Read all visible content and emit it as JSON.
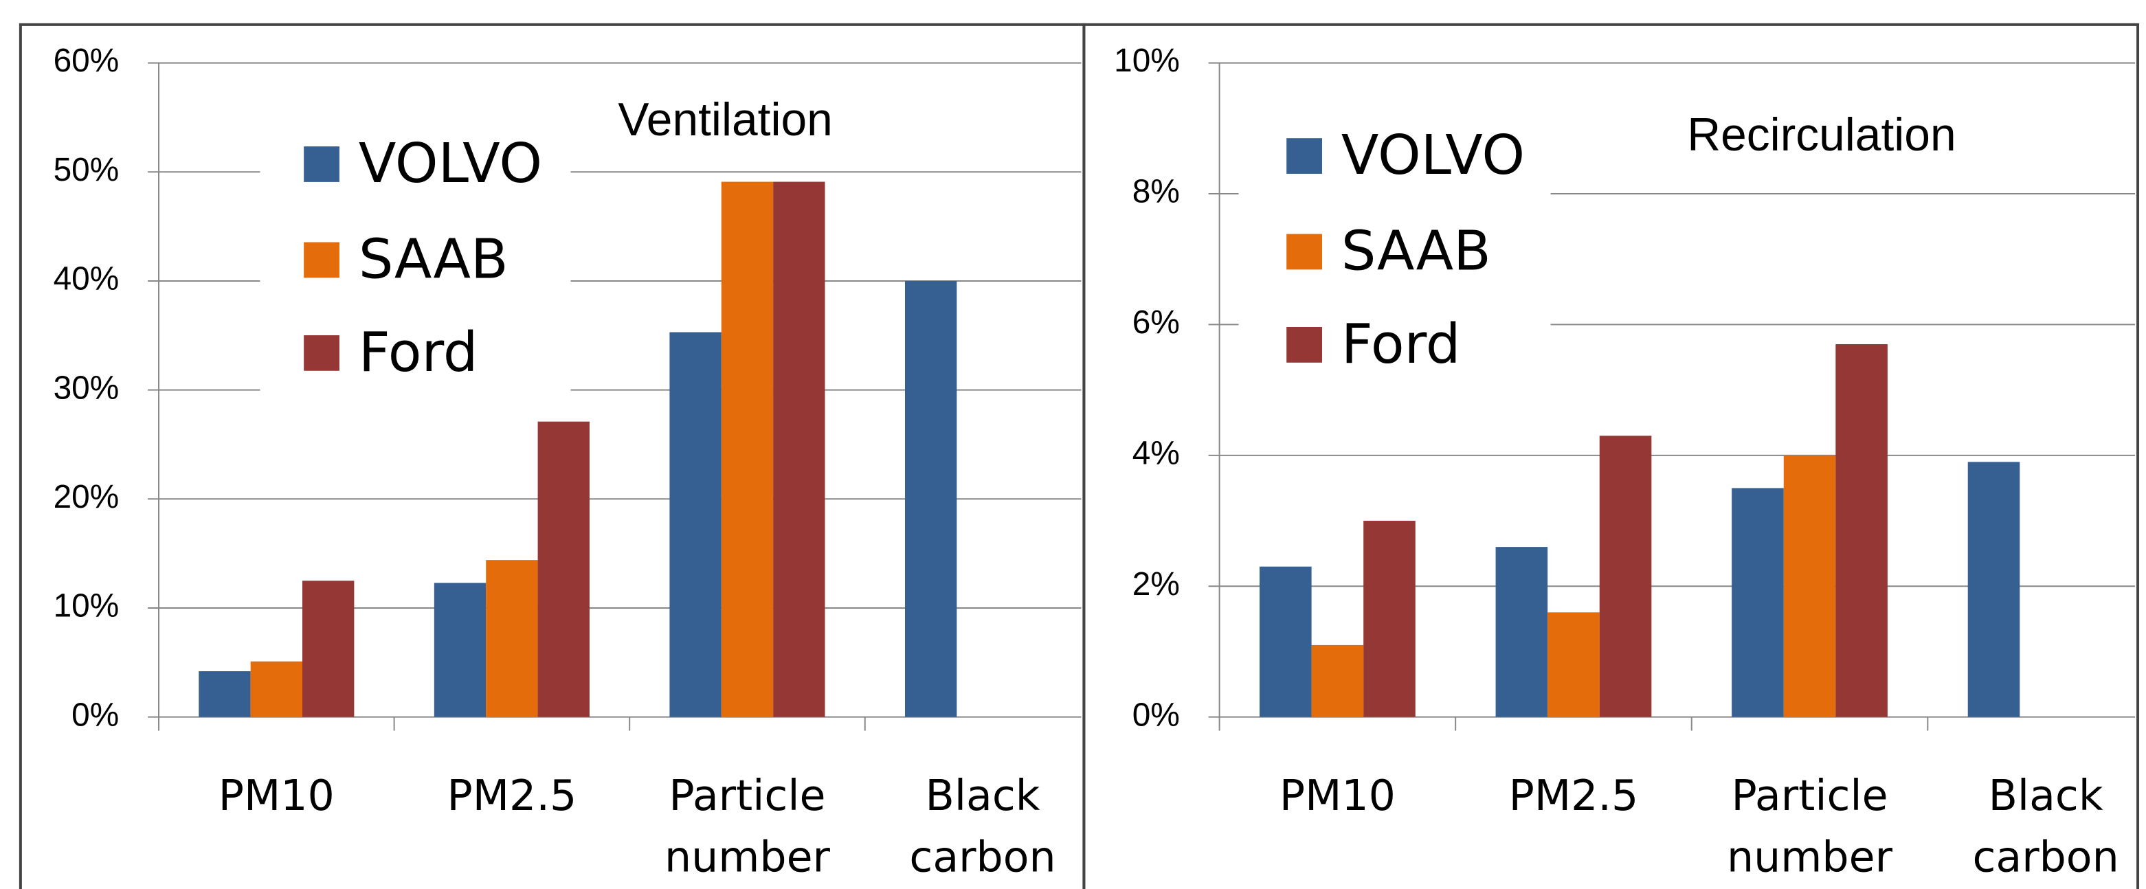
{
  "chart_data": [
    {
      "type": "bar",
      "title": "Ventilation",
      "categories": [
        "PM10",
        "PM2.5",
        "Particle number",
        "Black carbon"
      ],
      "series": [
        {
          "name": "VOLVO",
          "color": "#366092",
          "values": [
            4.2,
            12.3,
            35.3,
            40
          ]
        },
        {
          "name": "SAAB",
          "color": "#e46c0a",
          "values": [
            5.1,
            14.4,
            49.1,
            null
          ]
        },
        {
          "name": "Ford",
          "color": "#953735",
          "values": [
            12.5,
            27.1,
            49.1,
            null
          ]
        }
      ],
      "ylim": [
        0,
        60
      ],
      "yticks": [
        {
          "value": 0,
          "label": "0%"
        },
        {
          "value": 10,
          "label": "10%"
        },
        {
          "value": 20,
          "label": "20%"
        },
        {
          "value": 30,
          "label": "30%"
        },
        {
          "value": 40,
          "label": "40%"
        },
        {
          "value": 50,
          "label": "50%"
        },
        {
          "value": 60,
          "label": "60%"
        }
      ],
      "grid": true,
      "legend": "upper left"
    },
    {
      "type": "bar",
      "title": "Recirculation",
      "categories": [
        "PM10",
        "PM2.5",
        "Particle number",
        "Black carbon"
      ],
      "series": [
        {
          "name": "VOLVO",
          "color": "#366092",
          "values": [
            2.3,
            2.6,
            3.5,
            3.9
          ]
        },
        {
          "name": "SAAB",
          "color": "#e46c0a",
          "values": [
            1.1,
            1.6,
            4.0,
            null
          ]
        },
        {
          "name": "Ford",
          "color": "#953735",
          "values": [
            3.0,
            4.3,
            5.7,
            null
          ]
        }
      ],
      "ylim": [
        0,
        10
      ],
      "yticks": [
        {
          "value": 0,
          "label": "0%"
        },
        {
          "value": 2,
          "label": "2%"
        },
        {
          "value": 4,
          "label": "4%"
        },
        {
          "value": 6,
          "label": "6%"
        },
        {
          "value": 8,
          "label": "8%"
        },
        {
          "value": 10,
          "label": "10%"
        }
      ],
      "grid": true,
      "legend": "upper left"
    }
  ]
}
